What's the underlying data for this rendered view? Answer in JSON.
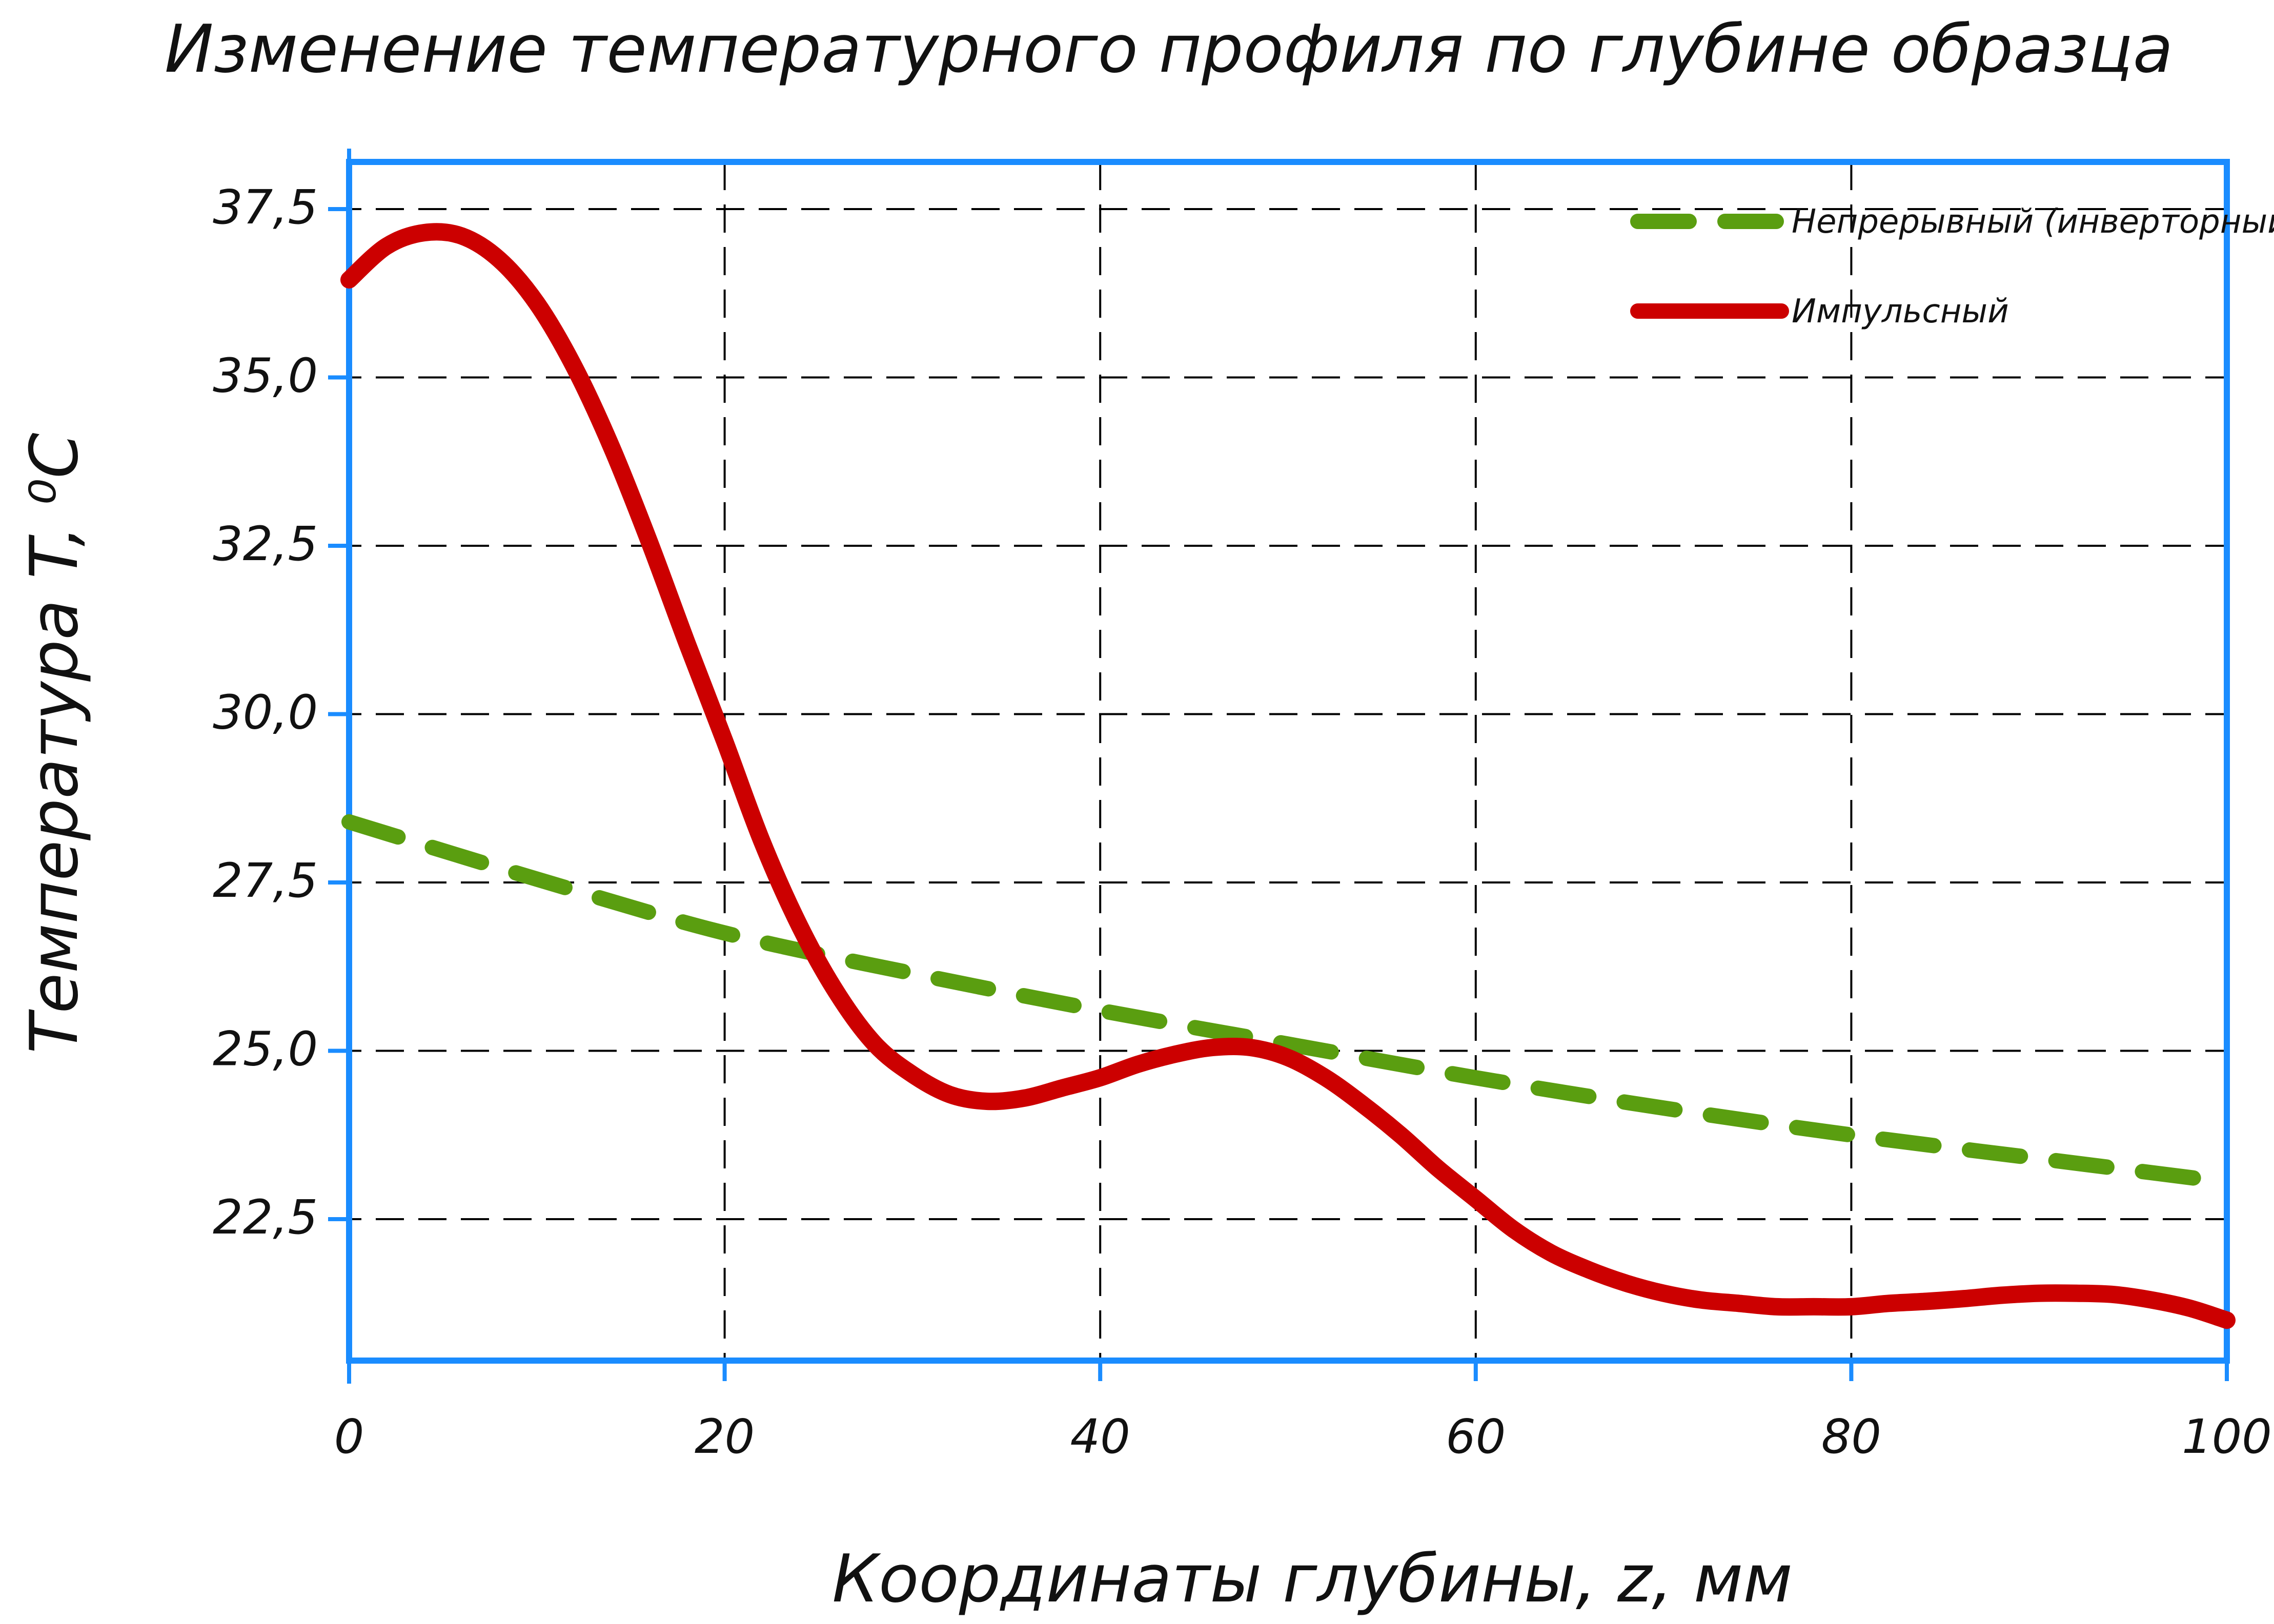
{
  "chart_data": {
    "type": "line",
    "title": "Изменение температурного профиля по глубине образца",
    "xlabel": "Координаты глубины, z, мм",
    "ylabel": "Температура T, ⁰C",
    "xlim": [
      0,
      100
    ],
    "ylim": [
      20.4,
      38.2
    ],
    "x_ticks": [
      0,
      20,
      40,
      60,
      80,
      100
    ],
    "x_tick_labels": [
      "0",
      "20",
      "40",
      "60",
      "80",
      "100"
    ],
    "y_ticks": [
      22.5,
      25.0,
      27.5,
      30.0,
      32.5,
      35.0,
      37.5
    ],
    "y_tick_labels": [
      "22,5",
      "25,0",
      "27,5",
      "30,0",
      "32,5",
      "35,0",
      "37,5"
    ],
    "grid": true,
    "legend_position": "top-right",
    "series": [
      {
        "name": "Непрерывный (инверторный)",
        "color": "#5a9e10",
        "style": "dashed",
        "x": [
          0,
          10,
          20,
          30,
          40,
          50,
          60,
          70,
          80,
          90,
          100
        ],
        "y": [
          28.4,
          27.55,
          26.75,
          26.15,
          25.6,
          25.1,
          24.6,
          24.15,
          23.75,
          23.4,
          23.05
        ]
      },
      {
        "name": "Импульсный",
        "color": "#cc0000",
        "style": "solid",
        "x": [
          0,
          2,
          4,
          6,
          8,
          10,
          12,
          14,
          16,
          18,
          20,
          22,
          24,
          26,
          28,
          30,
          32,
          34,
          36,
          38,
          40,
          42,
          44,
          46,
          48,
          50,
          52,
          54,
          56,
          58,
          60,
          62,
          64,
          66,
          68,
          70,
          72,
          74,
          76,
          78,
          80,
          82,
          84,
          86,
          88,
          90,
          92,
          94,
          96,
          98,
          100
        ],
        "y": [
          36.45,
          36.95,
          37.15,
          37.1,
          36.75,
          36.1,
          35.15,
          33.95,
          32.55,
          31.05,
          29.6,
          28.1,
          26.85,
          25.85,
          25.1,
          24.65,
          24.35,
          24.25,
          24.3,
          24.45,
          24.6,
          24.8,
          24.95,
          25.05,
          25.05,
          24.9,
          24.6,
          24.2,
          23.75,
          23.25,
          22.8,
          22.35,
          22.0,
          21.75,
          21.55,
          21.4,
          21.3,
          21.25,
          21.2,
          21.2,
          21.2,
          21.25,
          21.28,
          21.32,
          21.37,
          21.4,
          21.4,
          21.38,
          21.3,
          21.18,
          21.0
        ]
      }
    ]
  }
}
